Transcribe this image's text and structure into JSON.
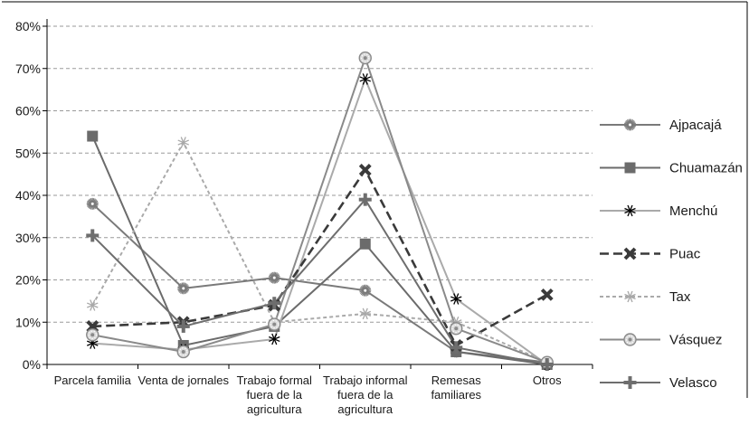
{
  "chart_data": {
    "type": "line",
    "categories": [
      "Parcela familia",
      "Venta de jornales",
      "Trabajo formal fuera de la agricultura",
      "Trabajo informal fuera de la agricultura",
      "Remesas familiares",
      "Otros"
    ],
    "category_lines": [
      [
        "Parcela familia"
      ],
      [
        "Venta de jornales"
      ],
      [
        "Trabajo formal",
        "fuera de la",
        "agricultura"
      ],
      [
        "Trabajo informal",
        "fuera de la",
        "agricultura"
      ],
      [
        "Remesas",
        "familiares"
      ],
      [
        "Otros"
      ]
    ],
    "y_ticks": [
      "0%",
      "10%",
      "20%",
      "30%",
      "40%",
      "50%",
      "60%",
      "70%",
      "80%"
    ],
    "ylim": [
      0,
      80
    ],
    "grid": true,
    "legend_position": "right",
    "series": [
      {
        "name": "Ajpacajá",
        "values": [
          38,
          18,
          20.5,
          17.5,
          3,
          0.5
        ],
        "color": "#7a7a7a",
        "dash": "solid",
        "marker": "starburst"
      },
      {
        "name": "Chuamazán",
        "values": [
          54,
          4.5,
          9,
          28.5,
          3,
          0
        ],
        "color": "#6b6b6b",
        "dash": "solid",
        "marker": "square"
      },
      {
        "name": "Menchú",
        "values": [
          5,
          3.5,
          6,
          67.5,
          15.5,
          0
        ],
        "color": "#aaaaaa",
        "dash": "solid",
        "marker": "asterisk-black"
      },
      {
        "name": "Puac",
        "values": [
          9,
          10,
          14,
          46,
          4.5,
          16.5
        ],
        "color": "#3a3a3a",
        "dash": "dashed",
        "marker": "x"
      },
      {
        "name": "Tax",
        "values": [
          14,
          52.5,
          10,
          12,
          10,
          0.5
        ],
        "color": "#aaaaaa",
        "dash": "dotted",
        "marker": "asterisk-light"
      },
      {
        "name": "Vásquez",
        "values": [
          7,
          3,
          9.5,
          72.5,
          8.5,
          0.5
        ],
        "color": "#8a8a8a",
        "dash": "solid",
        "marker": "circle"
      },
      {
        "name": "Velasco",
        "values": [
          30.5,
          9,
          14.5,
          39,
          4,
          0
        ],
        "color": "#6e6e6e",
        "dash": "solid",
        "marker": "plus"
      }
    ]
  }
}
